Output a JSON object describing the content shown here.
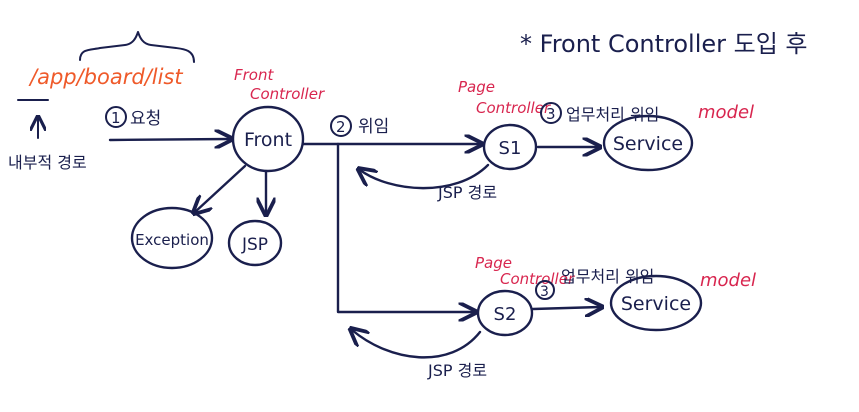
{
  "title": "* Front Controller 도입 후",
  "url_path": "/app/board/list",
  "url_path_caption": "내부적 경로",
  "step1_label": "요청",
  "step1_number": "1",
  "front_controller_label": [
    "Front",
    "Controller"
  ],
  "front_node": "Front",
  "exception_node": "Exception",
  "jsp_node": "JSP",
  "step2_label": "위임",
  "step2_number": "2",
  "page_controller_1_label": [
    "Page",
    "Controller"
  ],
  "s1_node": "S1",
  "step3a_label": "업무처리 위임",
  "step3a_number": "3",
  "service1_node": "Service",
  "model1_label": "model",
  "jsp_path_1": "JSP 경로",
  "page_controller_2_label": [
    "Page",
    "Controller"
  ],
  "s2_node": "S2",
  "step3b_label": "업무처리 위임",
  "step3b_number": "3",
  "service2_node": "Service",
  "model2_label": "model",
  "jsp_path_2": "JSP 경로",
  "colors": {
    "ink": "#1a1f4d",
    "red": "#d8264f",
    "orange": "#ef5a2a",
    "background": "#ffffff"
  }
}
